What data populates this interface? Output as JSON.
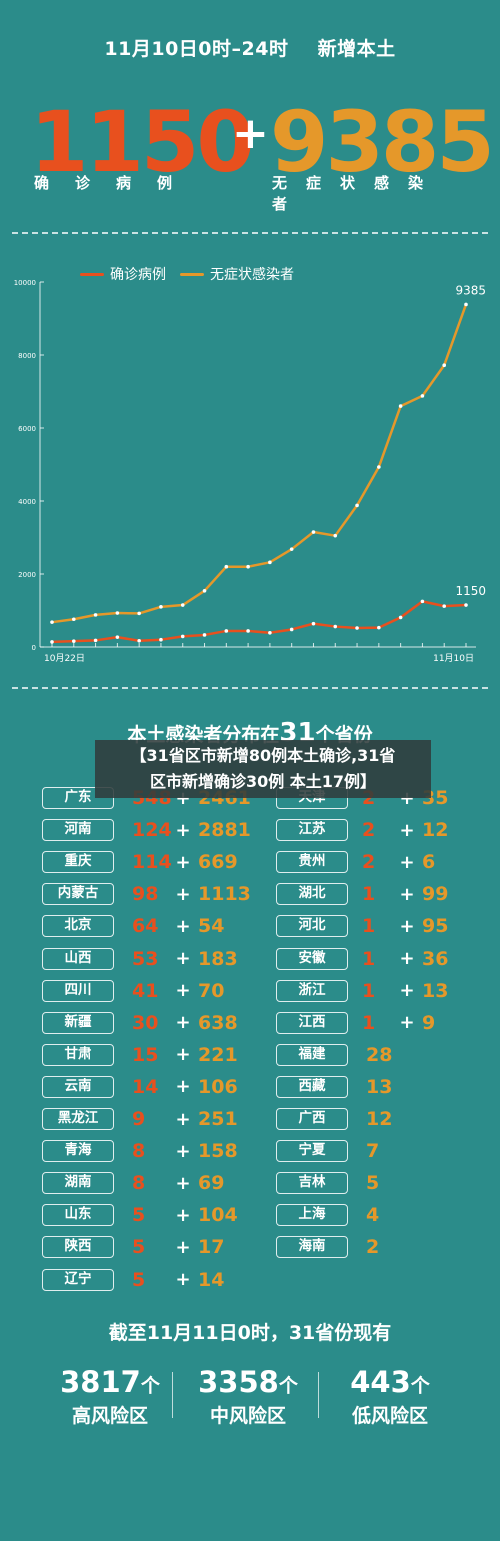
{
  "header": {
    "title": "11月10日0时–24时 新增本土",
    "confirmed": "1150",
    "plus": "+",
    "asymptomatic": "9385",
    "confirmed_label": "确诊病例",
    "asymptomatic_label": "无症状感染者"
  },
  "colors": {
    "background": "#2b8c8a",
    "confirmed": "#e8501e",
    "asymptomatic": "#e5982a"
  },
  "chart_data": {
    "type": "line",
    "title": "",
    "legend": [
      "确诊病例",
      "无症状感染者"
    ],
    "legend_position": "top",
    "x_ticks": [
      "10月22日",
      "11月10日"
    ],
    "x_range": [
      "10月22日",
      "11月10日"
    ],
    "ylim": [
      0,
      10000
    ],
    "y_ticks": [
      "0",
      "2000",
      "4000",
      "6000",
      "8000",
      "10000"
    ],
    "series": [
      {
        "name": "确诊病例",
        "color": "#e8501e",
        "values": [
          140,
          160,
          180,
          270,
          170,
          200,
          290,
          330,
          440,
          440,
          390,
          480,
          640,
          560,
          520,
          530,
          810,
          1250,
          1120,
          1150
        ],
        "end_label": "1150"
      },
      {
        "name": "无症状感染者",
        "color": "#e5982a",
        "values": [
          680,
          760,
          880,
          930,
          920,
          1100,
          1150,
          1540,
          2200,
          2200,
          2320,
          2680,
          3150,
          3050,
          3880,
          4930,
          6600,
          6880,
          7720,
          9385
        ],
        "end_label": "9385"
      }
    ]
  },
  "section": {
    "title_pre": "本土感染者分布在",
    "title_num": "31",
    "title_post": "个省份",
    "overlay_line1": "【31省区市新增80例本土确诊,31省",
    "overlay_line2": "区市新增确诊30例 本土17例】"
  },
  "provinces_left": [
    {
      "name": "广东",
      "confirmed": "548",
      "asym": "2461"
    },
    {
      "name": "河南",
      "confirmed": "124",
      "asym": "2881"
    },
    {
      "name": "重庆",
      "confirmed": "114",
      "asym": "669"
    },
    {
      "name": "内蒙古",
      "confirmed": "98",
      "asym": "1113"
    },
    {
      "name": "北京",
      "confirmed": "64",
      "asym": "54"
    },
    {
      "name": "山西",
      "confirmed": "53",
      "asym": "183"
    },
    {
      "name": "四川",
      "confirmed": "41",
      "asym": "70"
    },
    {
      "name": "新疆",
      "confirmed": "30",
      "asym": "638"
    },
    {
      "name": "甘肃",
      "confirmed": "15",
      "asym": "221"
    },
    {
      "name": "云南",
      "confirmed": "14",
      "asym": "106"
    },
    {
      "name": "黑龙江",
      "confirmed": "9",
      "asym": "251"
    },
    {
      "name": "青海",
      "confirmed": "8",
      "asym": "158"
    },
    {
      "name": "湖南",
      "confirmed": "8",
      "asym": "69"
    },
    {
      "name": "山东",
      "confirmed": "5",
      "asym": "104"
    },
    {
      "name": "陕西",
      "confirmed": "5",
      "asym": "17"
    },
    {
      "name": "辽宁",
      "confirmed": "5",
      "asym": "14"
    }
  ],
  "provinces_right": [
    {
      "name": "天津",
      "confirmed": "2",
      "asym": "35"
    },
    {
      "name": "江苏",
      "confirmed": "2",
      "asym": "12"
    },
    {
      "name": "贵州",
      "confirmed": "2",
      "asym": "6"
    },
    {
      "name": "湖北",
      "confirmed": "1",
      "asym": "99"
    },
    {
      "name": "河北",
      "confirmed": "1",
      "asym": "95"
    },
    {
      "name": "安徽",
      "confirmed": "1",
      "asym": "36"
    },
    {
      "name": "浙江",
      "confirmed": "1",
      "asym": "13"
    },
    {
      "name": "江西",
      "confirmed": "1",
      "asym": "9"
    },
    {
      "name": "福建",
      "confirmed": "",
      "asym": "28"
    },
    {
      "name": "西藏",
      "confirmed": "",
      "asym": "13"
    },
    {
      "name": "广西",
      "confirmed": "",
      "asym": "12"
    },
    {
      "name": "宁夏",
      "confirmed": "",
      "asym": "7"
    },
    {
      "name": "吉林",
      "confirmed": "",
      "asym": "5"
    },
    {
      "name": "上海",
      "confirmed": "",
      "asym": "4"
    },
    {
      "name": "海南",
      "confirmed": "",
      "asym": "2"
    }
  ],
  "bottom": {
    "title": "截至11月11日0时，31省份现有",
    "unit": "个",
    "high": {
      "count": "3817",
      "label": "高风险区"
    },
    "mid": {
      "count": "3358",
      "label": "中风险区"
    },
    "low": {
      "count": "443",
      "label": "低风险区"
    }
  }
}
